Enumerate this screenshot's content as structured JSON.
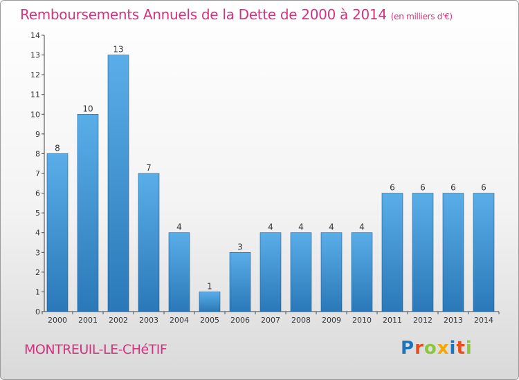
{
  "header": {
    "title": "Remboursements Annuels de la Dette de 2000 à 2014",
    "unit": "(en milliers d'€)"
  },
  "footer": {
    "commune": "MONTREUIL-LE-CHéTIF",
    "logo_letters": [
      {
        "char": "P",
        "color": "#1c75bc"
      },
      {
        "char": "r",
        "color": "#e94e1b"
      },
      {
        "char": "o",
        "color": "#8cc63f"
      },
      {
        "char": "x",
        "color": "#f7a600"
      },
      {
        "char": "i",
        "color": "#1c75bc"
      },
      {
        "char": "t",
        "color": "#e94e1b"
      },
      {
        "char": "i",
        "color": "#8cc63f"
      }
    ]
  },
  "colors": {
    "bar_top": "#5aaee8",
    "bar_bottom": "#2a78b8",
    "accent": "#d2337e"
  },
  "chart_data": {
    "type": "bar",
    "title": "Remboursements Annuels de la Dette de 2000 à 2014",
    "categories": [
      "2000",
      "2001",
      "2002",
      "2003",
      "2004",
      "2005",
      "2006",
      "2007",
      "2008",
      "2009",
      "2010",
      "2011",
      "2012",
      "2013",
      "2014"
    ],
    "values": [
      8,
      10,
      13,
      7,
      4,
      1,
      3,
      4,
      4,
      4,
      4,
      6,
      6,
      6,
      6
    ],
    "ylim": [
      0,
      14
    ],
    "yticks": [
      0,
      1,
      2,
      3,
      4,
      5,
      6,
      7,
      8,
      9,
      10,
      11,
      12,
      13,
      14
    ],
    "xlabel": "",
    "ylabel": "",
    "grid": false
  }
}
